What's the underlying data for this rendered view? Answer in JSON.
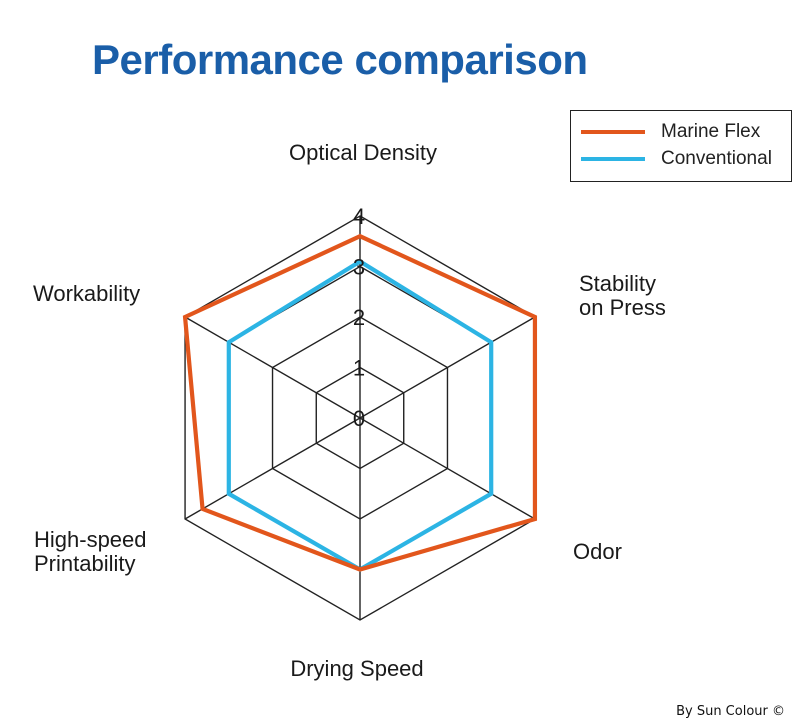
{
  "chart_data": {
    "type": "radar",
    "title": "Performance comparison",
    "axes": [
      "Optical Density",
      "Stability on Press",
      "Odor",
      "Drying Speed",
      "High-speed Printability",
      "Workability"
    ],
    "axis_label_lines": [
      [
        "Optical Density"
      ],
      [
        "Stability",
        "on Press"
      ],
      [
        "Odor"
      ],
      [
        "Drying Speed"
      ],
      [
        "High-speed",
        "Printability"
      ],
      [
        "Workability"
      ]
    ],
    "rlim": [
      0,
      4
    ],
    "ticks": [
      "0",
      "1",
      "2",
      "3",
      "4"
    ],
    "grid": true,
    "legend_position": "top-right",
    "series": [
      {
        "name": "Marine Flex",
        "color": "#e2561c",
        "values": [
          3.6,
          4.0,
          4.0,
          3.0,
          3.6,
          4.0
        ]
      },
      {
        "name": "Conventional",
        "color": "#2cb4e4",
        "values": [
          3.1,
          3.0,
          3.0,
          3.0,
          3.0,
          3.0
        ]
      }
    ]
  },
  "credit": "By Sun Colour ©",
  "colors": {
    "title": "#1a5ea8",
    "grid": "#222222"
  }
}
